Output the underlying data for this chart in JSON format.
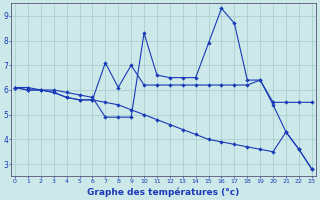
{
  "xlabel": "Graphe des températures (°c)",
  "bg_color": "#cce8e8",
  "grid_color": "#aad0d0",
  "line_color": "#1a3ab8",
  "x_ticks": [
    0,
    1,
    2,
    3,
    4,
    5,
    6,
    7,
    8,
    9,
    10,
    11,
    12,
    13,
    14,
    15,
    16,
    17,
    18,
    19,
    20,
    21,
    22,
    23
  ],
  "ylim": [
    2.5,
    9.5
  ],
  "xlim": [
    -0.3,
    23.3
  ],
  "y_ticks": [
    3,
    4,
    5,
    6,
    7,
    8,
    9
  ],
  "line1_x": [
    0,
    1,
    2,
    3,
    4,
    5,
    6,
    7,
    8,
    9,
    10,
    11,
    12,
    13,
    14,
    15,
    16,
    17,
    18,
    19,
    20,
    21,
    22,
    23
  ],
  "line1_y": [
    6.1,
    6.1,
    6.0,
    6.0,
    5.9,
    5.8,
    5.7,
    4.9,
    4.9,
    4.9,
    8.3,
    6.6,
    6.5,
    6.5,
    6.5,
    7.9,
    9.3,
    8.7,
    6.4,
    6.4,
    5.4,
    4.3,
    3.6,
    2.8
  ],
  "line2_x": [
    0,
    1,
    2,
    3,
    4,
    5,
    6,
    7,
    8,
    9,
    10,
    11,
    12,
    13,
    14,
    15,
    16,
    17,
    18,
    19,
    20,
    21,
    22,
    23
  ],
  "line2_y": [
    6.1,
    6.0,
    6.0,
    5.9,
    5.7,
    5.6,
    5.6,
    7.1,
    6.1,
    7.0,
    6.2,
    6.2,
    6.2,
    6.2,
    6.2,
    6.2,
    6.2,
    6.2,
    6.2,
    6.4,
    5.5,
    5.5,
    5.5,
    5.5
  ],
  "line3_x": [
    0,
    1,
    2,
    3,
    4,
    5,
    6,
    7,
    8,
    9,
    10,
    11,
    12,
    13,
    14,
    15,
    16,
    17,
    18,
    19,
    20,
    21,
    22,
    23
  ],
  "line3_y": [
    6.1,
    6.0,
    6.0,
    5.9,
    5.7,
    5.6,
    5.6,
    5.5,
    5.4,
    5.2,
    5.0,
    4.8,
    4.6,
    4.4,
    4.2,
    4.0,
    3.9,
    3.8,
    3.7,
    3.6,
    3.5,
    4.3,
    3.6,
    2.8
  ]
}
